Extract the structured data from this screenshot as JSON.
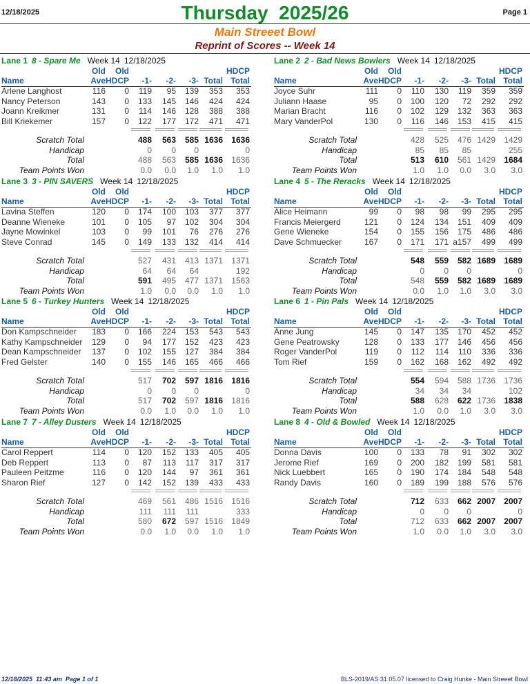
{
  "header": {
    "date": "12/18/2025",
    "title": "Thursday  2025/26",
    "page": "Page 1",
    "subtitle": "Main Streeet Bowl",
    "reprint": "Reprint of Scores -- Week 14"
  },
  "header_top": [
    "Old",
    "Old",
    "HDCP"
  ],
  "columns": [
    "Name",
    "Ave",
    "HDCP",
    "-1-",
    "-2-",
    "-3-",
    "Total",
    "Total"
  ],
  "summary_labels": [
    "Scratch Total",
    "Handicap",
    "Total",
    "Team Points Won"
  ],
  "lanes": [
    {
      "lane": "Lane 1",
      "team": "8 - Spare Me",
      "week": "Week 14",
      "date": "12/18/2025",
      "players": [
        [
          "Arlene Langhost",
          "116",
          "0",
          "119",
          "95",
          "139",
          "353",
          "353"
        ],
        [
          "Nancy Peterson",
          "143",
          "0",
          "133",
          "145",
          "146",
          "424",
          "424"
        ],
        [
          "Joann Kreikmer",
          "131",
          "0",
          "114",
          "146",
          "128",
          "388",
          "388"
        ],
        [
          "Bill Kriekemer",
          "157",
          "0",
          "122",
          "177",
          "172",
          "471",
          "471"
        ]
      ],
      "summary": [
        [
          "488",
          "563",
          "585",
          "1636",
          "1636"
        ],
        [
          "0",
          "0",
          "0",
          null,
          "0"
        ],
        [
          "488",
          "563",
          "585",
          "1636",
          "1636"
        ],
        [
          "0.0",
          "0.0",
          "1.0",
          "1.0",
          "1.0"
        ]
      ],
      "bold": [
        [
          0,
          1,
          2,
          3,
          4
        ],
        [],
        [
          2,
          3
        ],
        []
      ]
    },
    {
      "lane": "Lane 2",
      "team": "2 - Bad News Bowlers",
      "week": "Week 14",
      "date": "12/18/2025",
      "players": [
        [
          "Joyce Suhr",
          "111",
          "0",
          "110",
          "130",
          "119",
          "359",
          "359"
        ],
        [
          "Juliann Haase",
          "95",
          "0",
          "100",
          "120",
          "72",
          "292",
          "292"
        ],
        [
          "Marian Bracht",
          "116",
          "0",
          "102",
          "129",
          "132",
          "363",
          "363"
        ],
        [
          "Mary VanderPol",
          "130",
          "0",
          "116",
          "146",
          "153",
          "415",
          "415"
        ]
      ],
      "summary": [
        [
          "428",
          "525",
          "476",
          "1429",
          "1429"
        ],
        [
          "85",
          "85",
          "85",
          null,
          "255"
        ],
        [
          "513",
          "610",
          "561",
          "1429",
          "1684"
        ],
        [
          "1.0",
          "1.0",
          "0.0",
          "3.0",
          "3.0"
        ]
      ],
      "bold": [
        [],
        [],
        [
          0,
          1,
          4
        ],
        []
      ]
    },
    {
      "lane": "Lane 3",
      "team": "3 - PIN SAVERS",
      "week": "Week 14",
      "date": "12/18/2025",
      "players": [
        [
          "Lavina Steffen",
          "120",
          "0",
          "174",
          "100",
          "103",
          "377",
          "377"
        ],
        [
          "Deanne Wieneke",
          "101",
          "0",
          "105",
          "97",
          "102",
          "304",
          "304"
        ],
        [
          "Jayne Mowinkel",
          "103",
          "0",
          "99",
          "101",
          "76",
          "276",
          "276"
        ],
        [
          "Steve Conrad",
          "145",
          "0",
          "149",
          "133",
          "132",
          "414",
          "414"
        ]
      ],
      "summary": [
        [
          "527",
          "431",
          "413",
          "1371",
          "1371"
        ],
        [
          "64",
          "64",
          "64",
          null,
          "192"
        ],
        [
          "591",
          "495",
          "477",
          "1371",
          "1563"
        ],
        [
          "1.0",
          "0.0",
          "0.0",
          "1.0",
          "1.0"
        ]
      ],
      "bold": [
        [],
        [],
        [
          0
        ],
        []
      ]
    },
    {
      "lane": "Lane 4",
      "team": "5 - The Reracks",
      "week": "Week 14",
      "date": "12/18/2025",
      "players": [
        [
          "Alice Heimann",
          "99",
          "0",
          "98",
          "98",
          "99",
          "295",
          "295"
        ],
        [
          "Francis Meiergerd",
          "121",
          "0",
          "124",
          "134",
          "151",
          "409",
          "409"
        ],
        [
          "Gene Wieneke",
          "154",
          "0",
          "155",
          "156",
          "175",
          "486",
          "486"
        ],
        [
          "Dave Schmuecker",
          "167",
          "0",
          "171",
          "171",
          "a157",
          "499",
          "499"
        ]
      ],
      "summary": [
        [
          "548",
          "559",
          "582",
          "1689",
          "1689"
        ],
        [
          "0",
          "0",
          "0",
          null,
          "0"
        ],
        [
          "548",
          "559",
          "582",
          "1689",
          "1689"
        ],
        [
          "0.0",
          "1.0",
          "1.0",
          "3.0",
          "3.0"
        ]
      ],
      "bold": [
        [
          0,
          1,
          2,
          3,
          4
        ],
        [],
        [
          1,
          2,
          3,
          4
        ],
        []
      ]
    },
    {
      "lane": "Lane 5",
      "team": "6 - Turkey Hunters",
      "week": "Week 14",
      "date": "12/18/2025",
      "players": [
        [
          "Don Kampschneider",
          "183",
          "0",
          "166",
          "224",
          "153",
          "543",
          "543"
        ],
        [
          "Kathy Kampschneider",
          "129",
          "0",
          "94",
          "177",
          "152",
          "423",
          "423"
        ],
        [
          "Dean Kampschneider",
          "137",
          "0",
          "102",
          "155",
          "127",
          "384",
          "384"
        ],
        [
          "Fred Gelster",
          "140",
          "0",
          "155",
          "146",
          "165",
          "466",
          "466"
        ]
      ],
      "summary": [
        [
          "517",
          "702",
          "597",
          "1816",
          "1816"
        ],
        [
          "0",
          "0",
          "0",
          null,
          "0"
        ],
        [
          "517",
          "702",
          "597",
          "1816",
          "1816"
        ],
        [
          "0.0",
          "1.0",
          "0.0",
          "1.0",
          "1.0"
        ]
      ],
      "bold": [
        [
          1,
          2,
          3,
          4
        ],
        [],
        [
          1,
          3
        ],
        []
      ]
    },
    {
      "lane": "Lane 6",
      "team": "1 - Pin Pals",
      "week": "Week 14",
      "date": "12/18/2025",
      "players": [
        [
          "Anne Jung",
          "145",
          "0",
          "147",
          "135",
          "170",
          "452",
          "452"
        ],
        [
          "Gene Peatrowsky",
          "128",
          "0",
          "133",
          "177",
          "146",
          "456",
          "456"
        ],
        [
          "Roger VanderPol",
          "119",
          "0",
          "112",
          "114",
          "110",
          "336",
          "336"
        ],
        [
          "Tom Rief",
          "159",
          "0",
          "162",
          "168",
          "162",
          "492",
          "492"
        ]
      ],
      "summary": [
        [
          "554",
          "594",
          "588",
          "1736",
          "1736"
        ],
        [
          "34",
          "34",
          "34",
          null,
          "102"
        ],
        [
          "588",
          "628",
          "622",
          "1736",
          "1838"
        ],
        [
          "1.0",
          "0.0",
          "1.0",
          "3.0",
          "3.0"
        ]
      ],
      "bold": [
        [
          0
        ],
        [],
        [
          0,
          2,
          4
        ],
        []
      ]
    },
    {
      "lane": "Lane 7",
      "team": "7 - Alley Dusters",
      "week": "Week 14",
      "date": "12/18/2025",
      "players": [
        [
          "Carol Reppert",
          "114",
          "0",
          "120",
          "152",
          "133",
          "405",
          "405"
        ],
        [
          "Deb Reppert",
          "113",
          "0",
          "87",
          "113",
          "117",
          "317",
          "317"
        ],
        [
          "Pauleen Peitzme",
          "116",
          "0",
          "120",
          "144",
          "97",
          "361",
          "361"
        ],
        [
          "Sharon Rief",
          "127",
          "0",
          "142",
          "152",
          "139",
          "433",
          "433"
        ]
      ],
      "summary": [
        [
          "469",
          "561",
          "486",
          "1516",
          "1516"
        ],
        [
          "111",
          "111",
          "111",
          null,
          "333"
        ],
        [
          "580",
          "672",
          "597",
          "1516",
          "1849"
        ],
        [
          "0.0",
          "1.0",
          "0.0",
          "1.0",
          "1.0"
        ]
      ],
      "bold": [
        [],
        [],
        [
          1
        ],
        []
      ]
    },
    {
      "lane": "Lane 8",
      "team": "4 - Old & Bowled",
      "week": "Week 14",
      "date": "12/18/2025",
      "players": [
        [
          "Donna Davis",
          "100",
          "0",
          "133",
          "78",
          "91",
          "302",
          "302"
        ],
        [
          "Jerome Rief",
          "169",
          "0",
          "200",
          "182",
          "199",
          "581",
          "581"
        ],
        [
          "Nick Luebbert",
          "165",
          "0",
          "190",
          "174",
          "184",
          "548",
          "548"
        ],
        [
          "Randy Davis",
          "160",
          "0",
          "189",
          "199",
          "188",
          "576",
          "576"
        ]
      ],
      "summary": [
        [
          "712",
          "633",
          "662",
          "2007",
          "2007"
        ],
        [
          "0",
          "0",
          "0",
          null,
          "0"
        ],
        [
          "712",
          "633",
          "662",
          "2007",
          "2007"
        ],
        [
          "1.0",
          "0.0",
          "1.0",
          "3.0",
          "3.0"
        ]
      ],
      "bold": [
        [
          0,
          2,
          3,
          4
        ],
        [],
        [
          2,
          3,
          4
        ],
        []
      ]
    }
  ],
  "footer": {
    "left": "12/18/2025  11:43 am  Page 1 of 1",
    "right": "BLS-2019/AS 31.05.07 licensed to Craig Hunke - Main Streeet Bowl"
  }
}
